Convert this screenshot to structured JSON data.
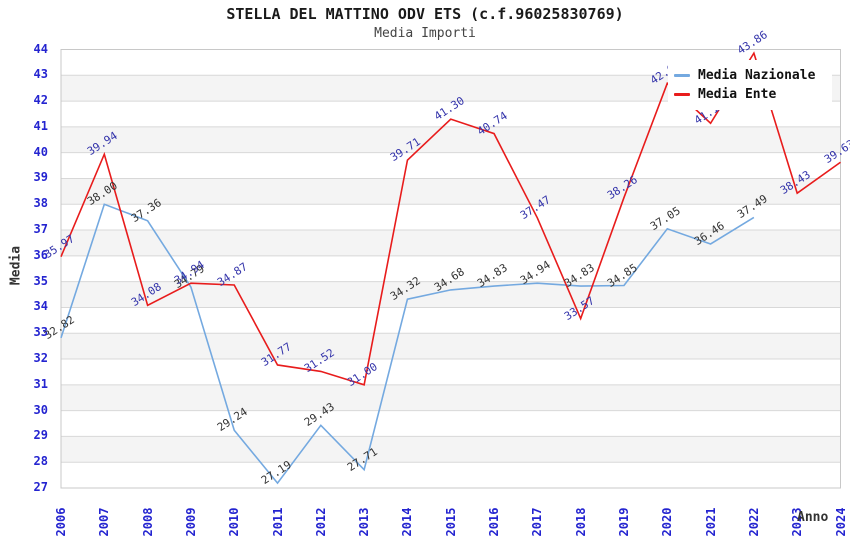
{
  "title": "STELLA DEL MATTINO ODV ETS (c.f.96025830769)",
  "subtitle": "Media Importi",
  "legend": {
    "position": "top-right",
    "items": [
      {
        "label": "Media Nazionale",
        "color": "#74a9e0"
      },
      {
        "label": "Media Ente",
        "color": "#e81c1c"
      }
    ]
  },
  "colors": {
    "nazionale_line": "#74a9e0",
    "ente_line": "#e81c1c",
    "nazionale_label": "#333333",
    "ente_label": "#3333aa",
    "axis_tick": "#2424d0",
    "grid_line": "#d8d8d8",
    "band_gray": "#f4f4f4",
    "plot_border": "#c8c8c8"
  },
  "chart_data": {
    "type": "line",
    "title": "STELLA DEL MATTINO ODV ETS (c.f.96025830769)",
    "subtitle": "Media Importi",
    "xlabel": "Anno",
    "ylabel": "Media",
    "x": [
      2006,
      2007,
      2008,
      2009,
      2010,
      2011,
      2012,
      2013,
      2014,
      2015,
      2016,
      2017,
      2018,
      2019,
      2020,
      2021,
      2022,
      2023,
      2024
    ],
    "ylim": [
      27,
      44
    ],
    "yticks": [
      27,
      28,
      29,
      30,
      31,
      32,
      33,
      34,
      35,
      36,
      37,
      38,
      39,
      40,
      41,
      42,
      43,
      44
    ],
    "grid": "horizontal",
    "legend_position": "top-right",
    "series": [
      {
        "name": "Media Nazionale",
        "color": "#74a9e0",
        "label_color": "#333333",
        "values": [
          32.82,
          38.0,
          37.36,
          34.79,
          29.24,
          27.19,
          29.43,
          27.71,
          34.32,
          34.68,
          34.83,
          34.94,
          34.83,
          34.85,
          37.05,
          36.46,
          37.49,
          null,
          null
        ]
      },
      {
        "name": "Media Ente",
        "color": "#e81c1c",
        "label_color": "#3333aa",
        "values": [
          35.97,
          39.94,
          34.08,
          34.94,
          34.87,
          31.77,
          31.52,
          31.0,
          39.71,
          41.3,
          40.74,
          37.47,
          33.57,
          38.26,
          42.69,
          41.14,
          43.86,
          38.43,
          39.63
        ]
      }
    ]
  }
}
